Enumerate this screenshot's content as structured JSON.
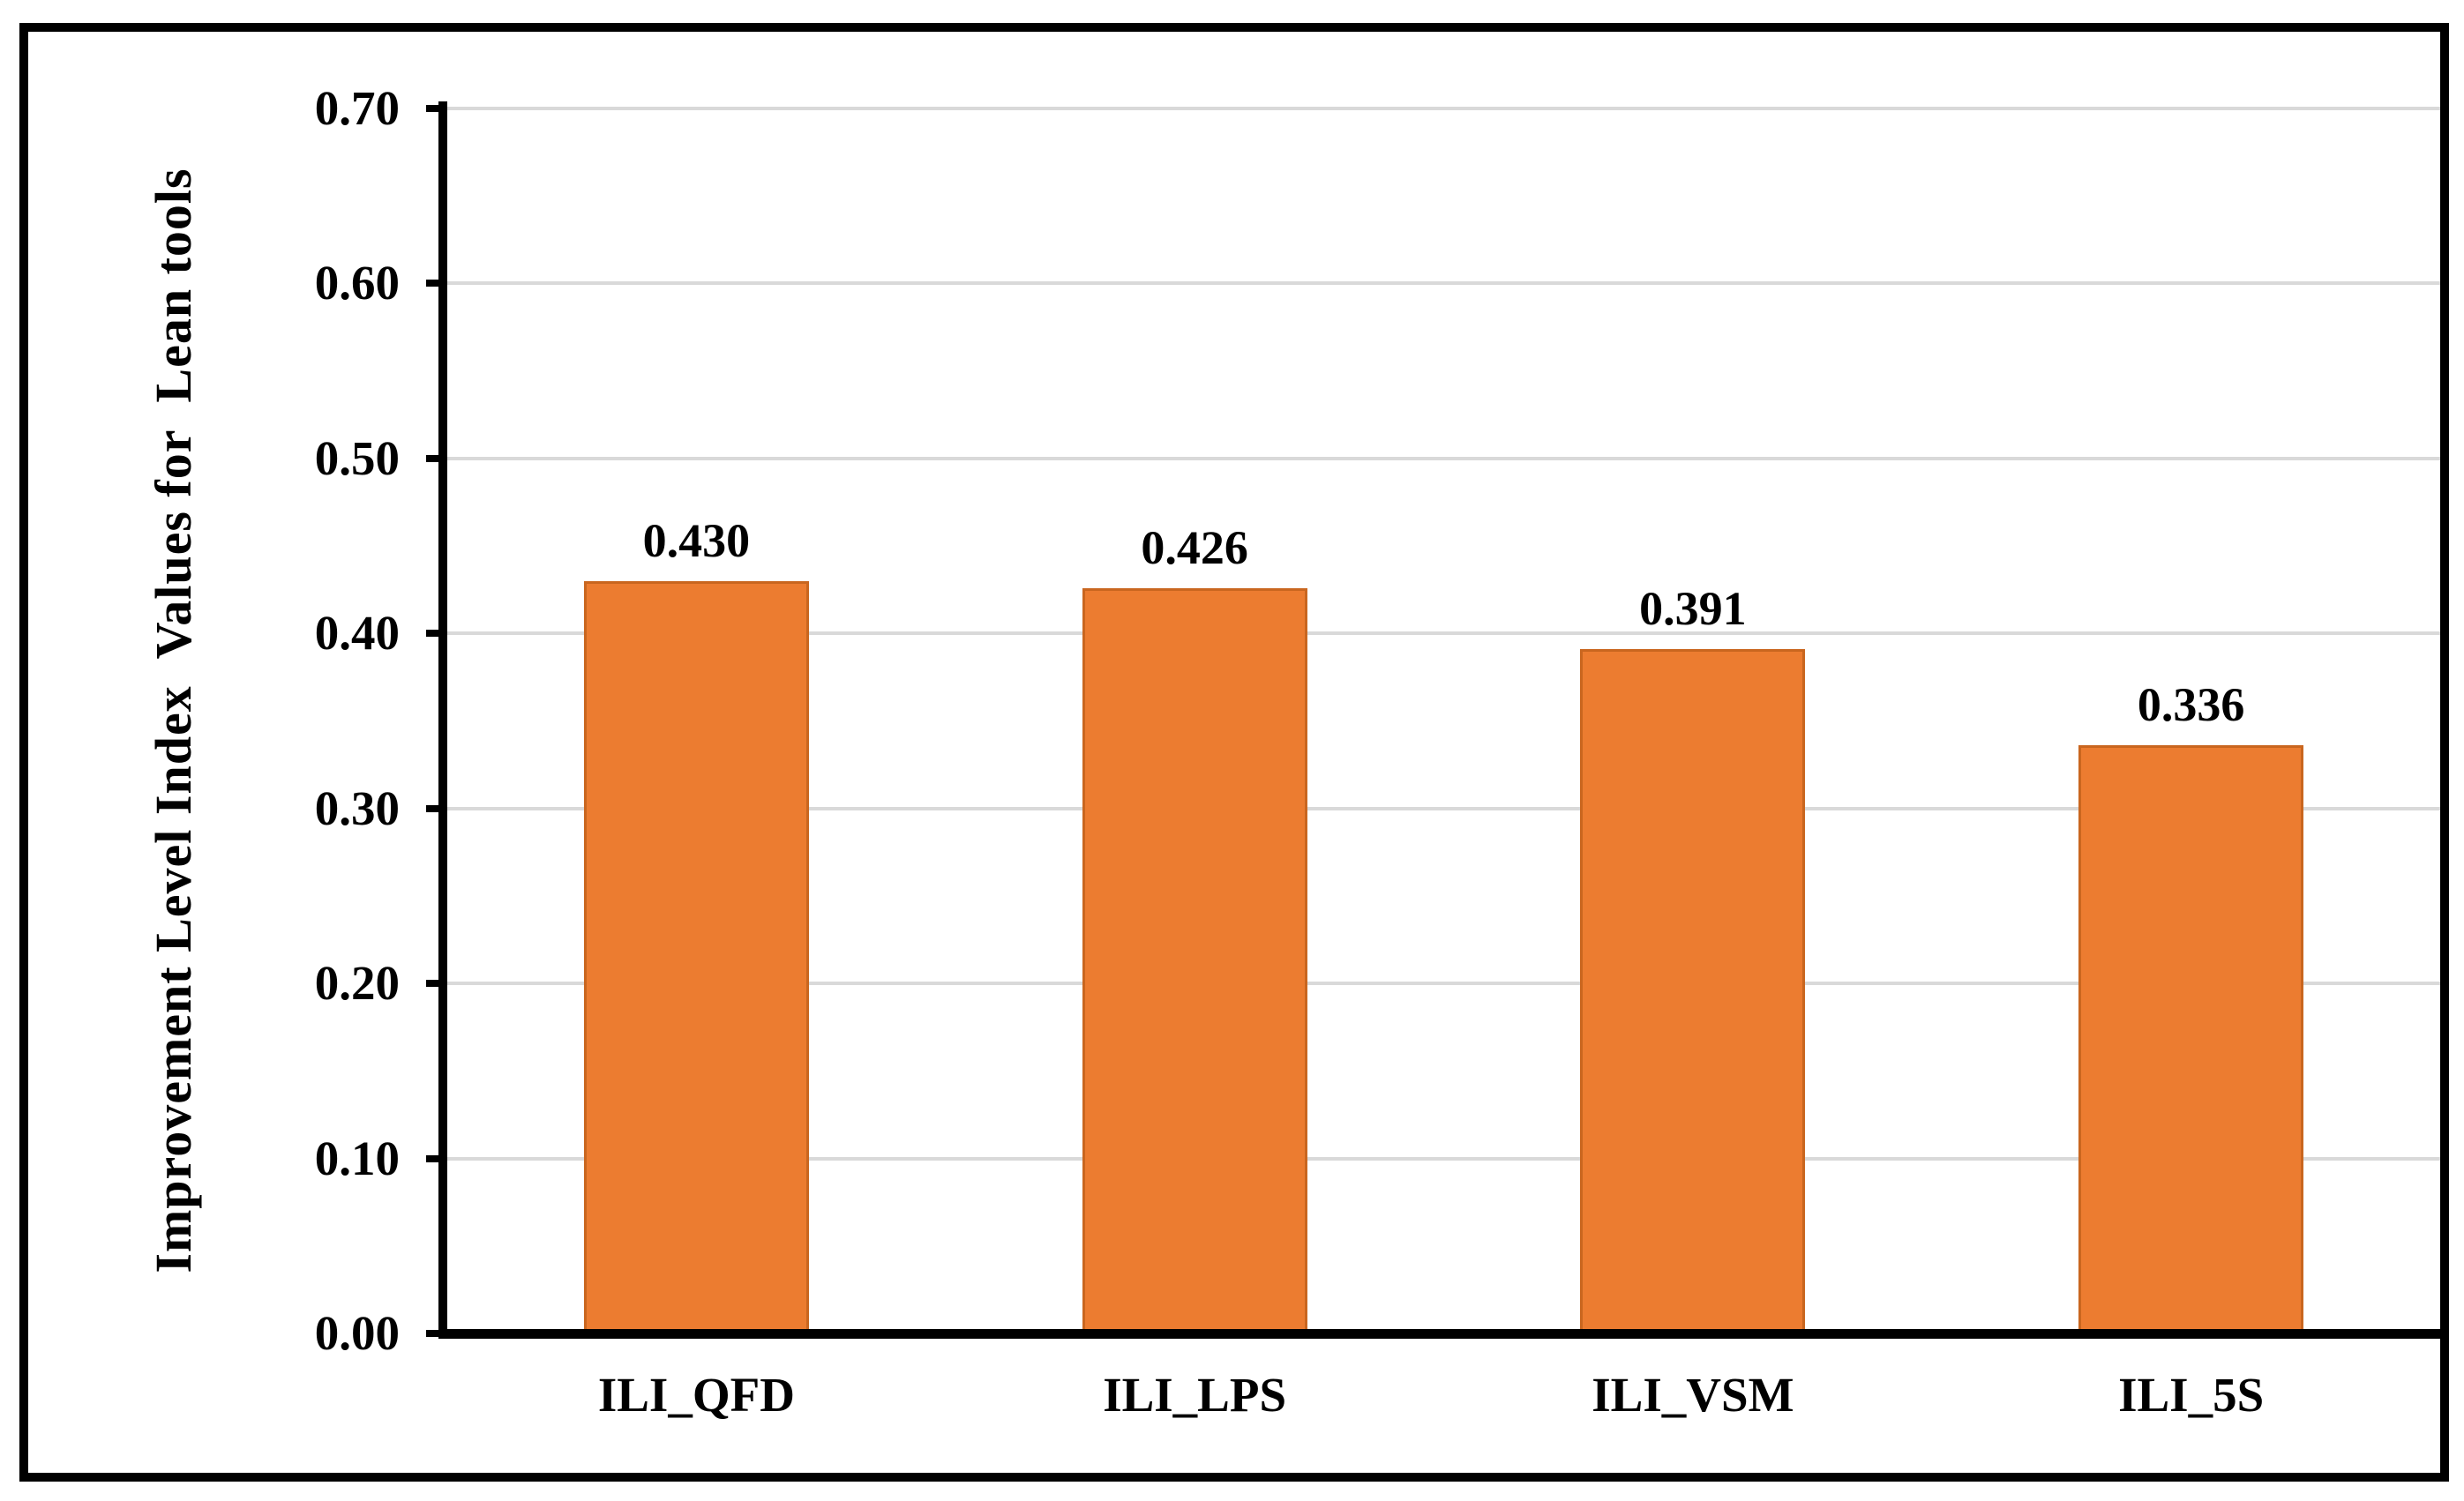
{
  "chart_data": {
    "type": "bar",
    "title": "",
    "ylabel": "Improvement Level Index  Values for  Lean tools",
    "xlabel": "",
    "categories": [
      "ILI_QFD",
      "ILI_LPS",
      "ILI_VSM",
      "ILI_5S"
    ],
    "values": [
      0.43,
      0.426,
      0.391,
      0.336
    ],
    "data_labels": [
      "0.430",
      "0.426",
      "0.391",
      "0.336"
    ],
    "ylim": [
      0.0,
      0.7
    ],
    "ytick_interval": 0.1,
    "ytick_labels": [
      "0.00",
      "0.10",
      "0.20",
      "0.30",
      "0.40",
      "0.50",
      "0.60",
      "0.70"
    ],
    "grid": "horizontal-only",
    "legend": "none",
    "colors": {
      "bar_fill": "#EC7C30",
      "bar_border": "#C9661F",
      "gridline": "#D9D9D9",
      "axis": "#000000",
      "text": "#000000",
      "background": "#FFFFFF",
      "frame_border": "#000000"
    }
  }
}
